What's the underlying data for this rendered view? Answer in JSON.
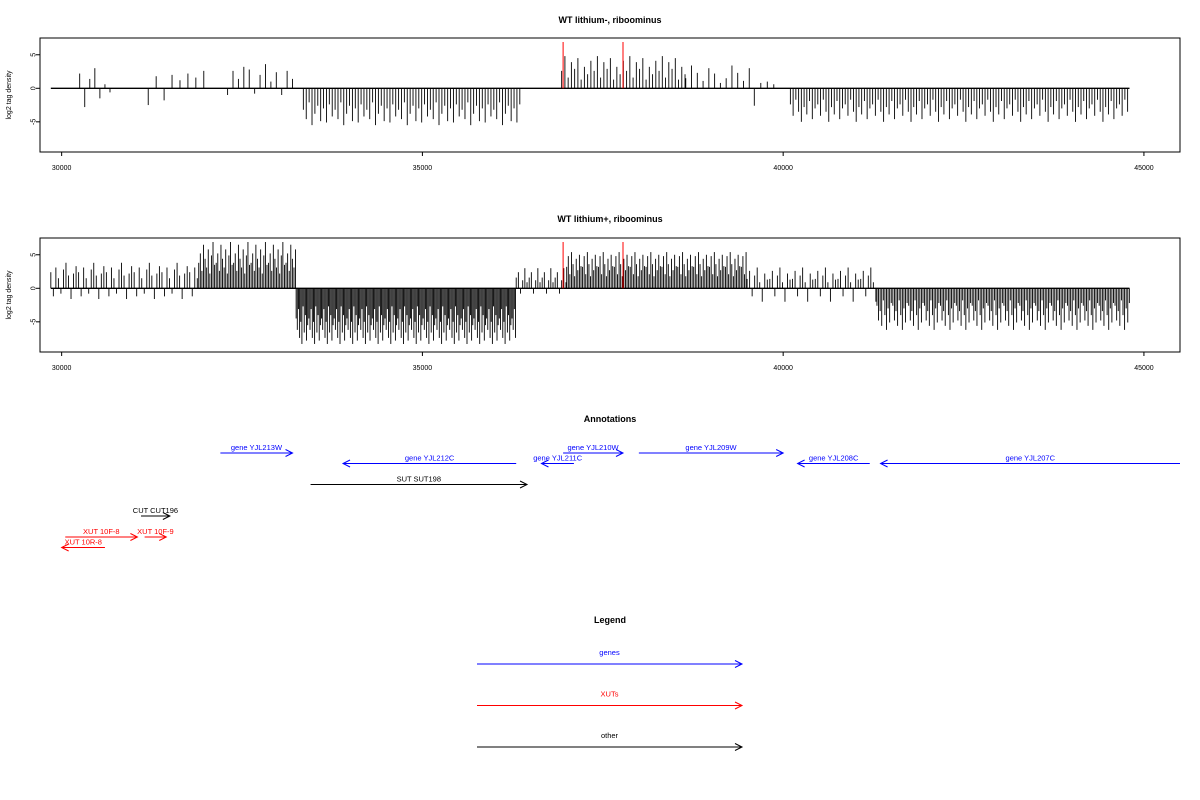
{
  "chart_data": [
    {
      "type": "bar",
      "title": "WT lithium-, riboominus",
      "ylabel": "log2 tag density",
      "xlim": [
        29700,
        45500
      ],
      "ylim": [
        -9.5,
        7.5
      ],
      "xticks": [
        30000,
        35000,
        40000,
        45000
      ],
      "yticks": [
        -5,
        0,
        5
      ],
      "baseline_x_range": [
        29850,
        44800
      ],
      "red_markers": [
        36950,
        37780
      ],
      "bar_color": "#000000",
      "marker_color": "#ff0000",
      "segments": [
        {
          "from": 30250,
          "to": 30720,
          "step": 70,
          "pattern": [
            2.2,
            -2.8,
            1.4,
            3.0,
            -1.5,
            0.6,
            -0.6
          ],
          "scale": 1
        },
        {
          "from": 31200,
          "to": 32000,
          "step": 110,
          "pattern": [
            -2.5,
            1.8,
            -1.8,
            2.0,
            1.2,
            2.2,
            1.6,
            2.6
          ],
          "scale": 1
        },
        {
          "from": 32300,
          "to": 33250,
          "step": 75,
          "pattern": [
            -1.0,
            2.6,
            1.4,
            3.2,
            2.8,
            -0.8,
            2.0,
            3.6,
            1.0,
            2.4
          ],
          "scale": 1
        },
        {
          "from": 33350,
          "to": 36350,
          "step": 40,
          "pattern": [
            -3.2,
            -4.6,
            -2.1,
            -5.5,
            -3.8,
            -2.6,
            -4.9,
            -3.0,
            -5.1,
            -2.4,
            -4.2
          ],
          "scale": 1
        },
        {
          "from": 36930,
          "to": 38650,
          "step": 45,
          "pattern": [
            2.6,
            4.8,
            1.6,
            3.9,
            2.9,
            4.5,
            1.3,
            3.2,
            2.1,
            4.1
          ],
          "scale": 1
        },
        {
          "from": 38650,
          "to": 39600,
          "step": 80,
          "pattern": [
            1.5,
            3.4,
            2.3,
            1.1,
            3.0,
            2.2,
            0.8
          ],
          "scale": 1
        },
        {
          "from": 39600,
          "to": 39950,
          "step": 90,
          "pattern": [
            -2.6,
            0.8,
            1.0,
            0.6
          ],
          "scale": 1
        },
        {
          "from": 40100,
          "to": 44800,
          "step": 38,
          "pattern": [
            -2.4,
            -4.1,
            -1.7,
            -3.5,
            -5.0,
            -2.8,
            -3.9,
            -1.9,
            -4.6,
            -3.0
          ],
          "scale": 1
        }
      ]
    },
    {
      "type": "bar",
      "title": "WT lithium+, riboominus",
      "ylabel": "log2 tag density",
      "xlim": [
        29700,
        45500
      ],
      "ylim": [
        -9.5,
        7.5
      ],
      "xticks": [
        30000,
        35000,
        40000,
        45000
      ],
      "yticks": [
        -5,
        0,
        5
      ],
      "baseline_x_range": [
        29850,
        44800
      ],
      "red_markers": [
        36950,
        37780
      ],
      "bar_color": "#000000",
      "marker_color": "#ff0000",
      "segments": [
        {
          "from": 29850,
          "to": 31900,
          "step": 35,
          "pattern": [
            2.4,
            -1.2,
            3.1,
            1.5,
            -0.8,
            2.8,
            3.8,
            1.9,
            -1.6,
            2.2,
            3.3
          ],
          "scale": 1
        },
        {
          "from": 31900,
          "to": 33250,
          "step": 22,
          "pattern": [
            3.8,
            5.2,
            2.6,
            6.5,
            4.4,
            3.1,
            5.8,
            2.2,
            4.9,
            6.9,
            3.5
          ],
          "scale": 1
        },
        {
          "from": 33250,
          "to": 36300,
          "step": 16,
          "pattern": [
            -4.5,
            -6.2,
            -3.1,
            -7.4,
            -5.0,
            -8.3,
            -2.7,
            -6.6,
            -4.0,
            -7.8,
            -5.5
          ],
          "scale": 1
        },
        {
          "from": 36300,
          "to": 37000,
          "step": 30,
          "pattern": [
            1.6,
            2.4,
            -0.8,
            1.2,
            3.0,
            0.9
          ],
          "scale": 1
        },
        {
          "from": 37000,
          "to": 39500,
          "step": 22,
          "pattern": [
            3.2,
            4.8,
            2.1,
            5.4,
            3.6,
            1.8,
            4.4,
            2.7,
            5.0,
            3.3
          ],
          "scale": 1
        },
        {
          "from": 39500,
          "to": 41300,
          "step": 35,
          "pattern": [
            1.4,
            2.6,
            -1.2,
            1.9,
            3.1,
            0.9,
            -2.0,
            2.2,
            1.3
          ],
          "scale": 1
        },
        {
          "from": 41300,
          "to": 44800,
          "step": 22,
          "pattern": [
            -2.6,
            -4.8,
            -3.4,
            -5.6,
            -1.8,
            -4.0,
            -6.2,
            -3.0,
            -5.1,
            -2.2
          ],
          "scale": 1
        }
      ]
    }
  ],
  "annotations": {
    "title": "Annotations",
    "xlim": [
      29700,
      45500
    ],
    "items": [
      {
        "label": "gene YJL213W",
        "from": 32200,
        "to": 33200,
        "dir": "right",
        "row": 0,
        "color": "#0000ff"
      },
      {
        "label": "gene YJL212C",
        "from": 33900,
        "to": 36300,
        "dir": "left",
        "row": 1,
        "color": "#0000ff"
      },
      {
        "label": "gene YJL211C",
        "from": 36650,
        "to": 37100,
        "dir": "left",
        "row": 1,
        "color": "#0000ff"
      },
      {
        "label": "gene YJL210W",
        "from": 36950,
        "to": 37780,
        "dir": "right",
        "row": 0,
        "color": "#0000ff"
      },
      {
        "label": "gene YJL209W",
        "from": 38000,
        "to": 40000,
        "dir": "right",
        "row": 0,
        "color": "#0000ff"
      },
      {
        "label": "gene YJL208C",
        "from": 40200,
        "to": 41200,
        "dir": "left",
        "row": 1,
        "color": "#0000ff"
      },
      {
        "label": "gene YJL207C",
        "from": 41350,
        "to": 45500,
        "dir": "left",
        "row": 1,
        "color": "#0000ff"
      },
      {
        "label": "SUT SUT198",
        "from": 33450,
        "to": 36450,
        "dir": "right",
        "row": 3,
        "color": "#000000"
      },
      {
        "label": "CUT CUT196",
        "from": 31100,
        "to": 31500,
        "dir": "right",
        "row": 6,
        "color": "#000000"
      },
      {
        "label": "XUT 10F-8",
        "from": 30050,
        "to": 31050,
        "dir": "right",
        "row": 8,
        "color": "#ff0000"
      },
      {
        "label": "XUT 10F-9",
        "from": 31150,
        "to": 31450,
        "dir": "right",
        "row": 8,
        "color": "#ff0000"
      },
      {
        "label": "XUT 10R-8",
        "from": 30000,
        "to": 30600,
        "dir": "left",
        "row": 9,
        "color": "#ff0000"
      }
    ]
  },
  "legend": {
    "title": "Legend",
    "items": [
      {
        "label": "genes",
        "color": "#0000ff"
      },
      {
        "label": "XUTs",
        "color": "#ff0000"
      },
      {
        "label": "other",
        "color": "#000000"
      }
    ]
  }
}
